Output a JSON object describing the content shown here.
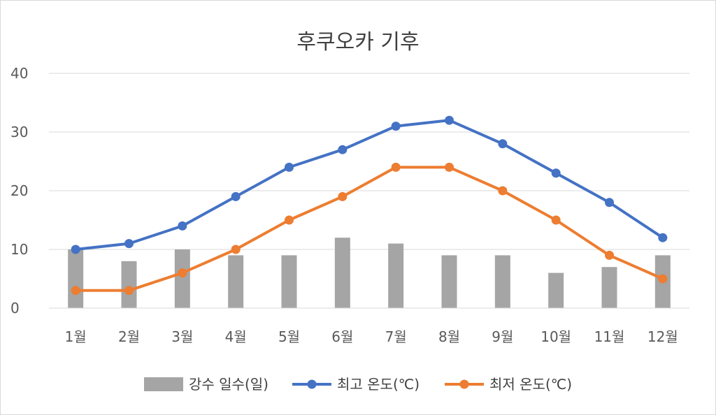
{
  "chart_data": {
    "type": "bar",
    "title": "후쿠오카 기후",
    "categories": [
      "1월",
      "2월",
      "3월",
      "4월",
      "5월",
      "6월",
      "7월",
      "8월",
      "9월",
      "10월",
      "11월",
      "12월"
    ],
    "ylim": [
      0,
      40
    ],
    "yticks": [
      0,
      10,
      20,
      30,
      40
    ],
    "grid": true,
    "legend_position": "bottom",
    "series": [
      {
        "name": "강수 일수(일)",
        "type": "bar",
        "color": "#a5a5a5",
        "values": [
          10,
          8,
          10,
          9,
          9,
          12,
          11,
          9,
          9,
          6,
          7,
          9
        ]
      },
      {
        "name": "최고 온도(℃)",
        "type": "line",
        "color": "#4472c4",
        "values": [
          10,
          11,
          14,
          19,
          24,
          27,
          31,
          32,
          28,
          23,
          18,
          12
        ]
      },
      {
        "name": "최저 온도(℃)",
        "type": "line",
        "color": "#ed7d31",
        "values": [
          3,
          3,
          6,
          10,
          15,
          19,
          24,
          24,
          20,
          15,
          9,
          5
        ]
      }
    ]
  }
}
